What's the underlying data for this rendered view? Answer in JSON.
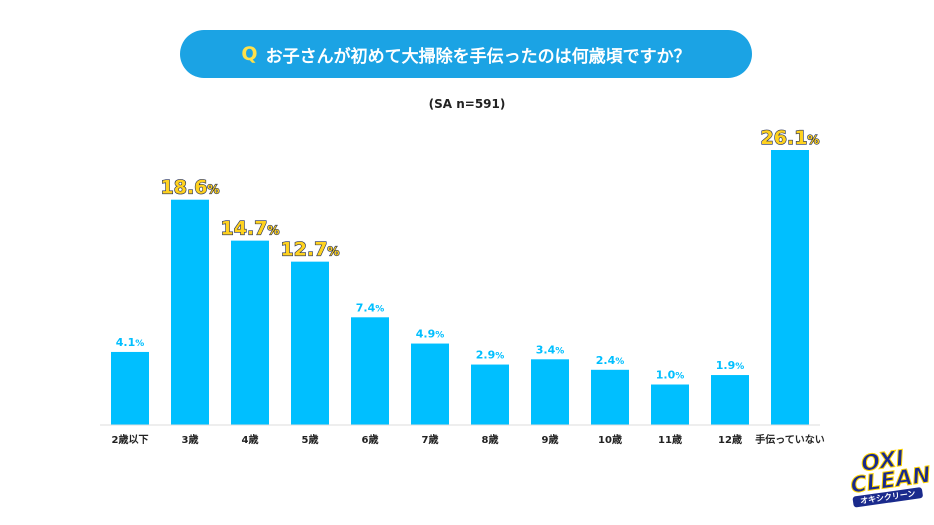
{
  "chart_data": {
    "type": "bar",
    "title_prefix": "Q",
    "title": "お子さんが初めて大掃除を手伝ったのは何歳頃ですか？",
    "subtitle": "(SA n=591)",
    "categories": [
      "2歳以下",
      "3歳",
      "4歳",
      "5歳",
      "6歳",
      "7歳",
      "8歳",
      "9歳",
      "10歳",
      "11歳",
      "12歳",
      "手伝っていない"
    ],
    "values": [
      4.1,
      18.6,
      14.7,
      12.7,
      7.4,
      4.9,
      2.9,
      3.4,
      2.4,
      1.0,
      1.9,
      26.1
    ],
    "value_suffix": "%",
    "highlighted": [
      1,
      2,
      3,
      11
    ],
    "bar_color": "#00bfff",
    "highlight_label_color": "#ffd21f",
    "label_color": "#00bfff"
  },
  "logo": {
    "line1": "OXI",
    "line2": "CLEAN",
    "line3": "オキシクリーン"
  }
}
